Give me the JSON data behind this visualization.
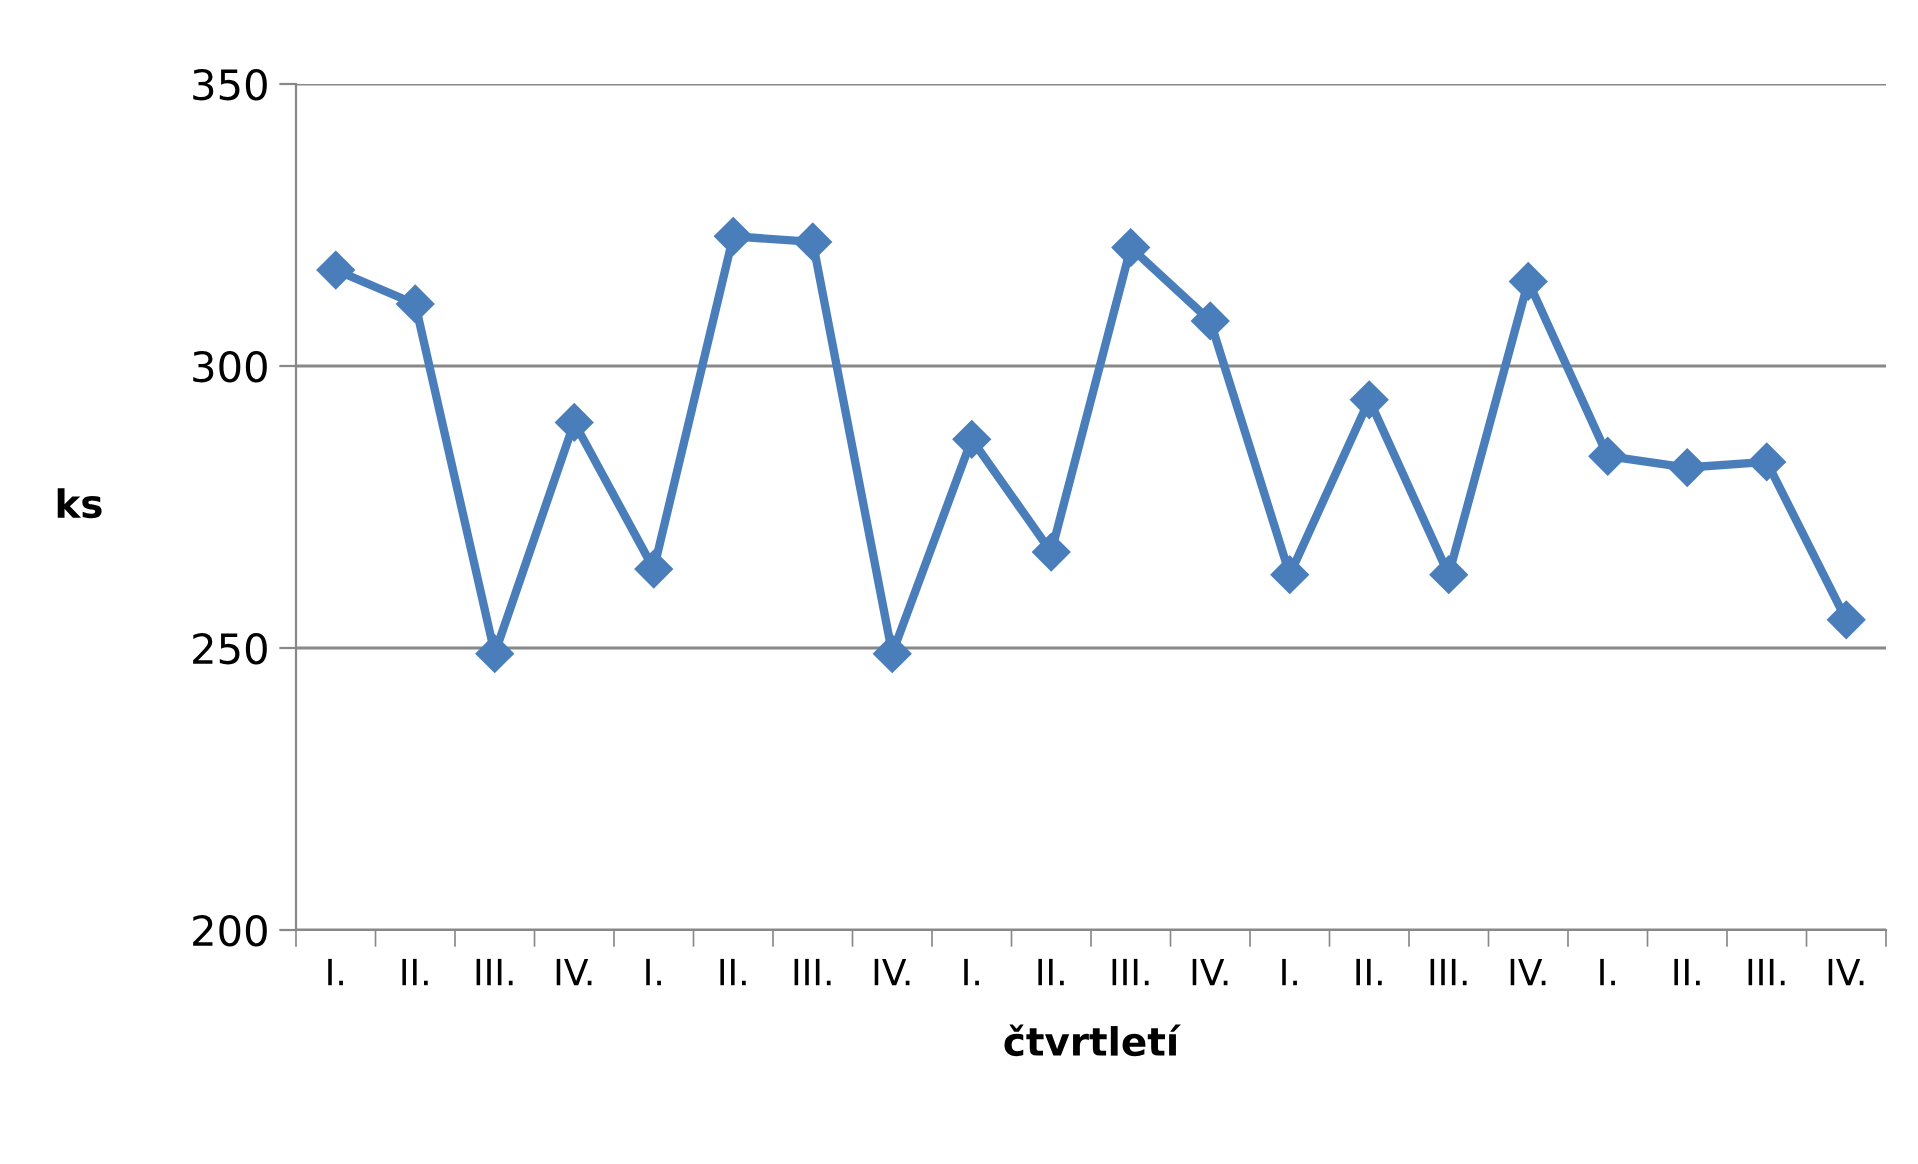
{
  "chart_data": {
    "type": "line",
    "xlabel": "čtvrtletí",
    "ylabel": "ks",
    "categories": [
      "I.",
      "II.",
      "III.",
      "IV.",
      "I.",
      "II.",
      "III.",
      "IV.",
      "I.",
      "II.",
      "III.",
      "IV.",
      "I.",
      "II.",
      "III.",
      "IV.",
      "I.",
      "II.",
      "III.",
      "IV."
    ],
    "series": [
      {
        "color": "#4a7ebb",
        "values": [
          317,
          311,
          249,
          290,
          264,
          323,
          322,
          249,
          287,
          267,
          321,
          308,
          263,
          294,
          263,
          315,
          284,
          282,
          283,
          255
        ]
      }
    ],
    "ylim": [
      200,
      350
    ],
    "yticks": [
      200,
      250,
      300,
      350
    ],
    "grid": "y",
    "marker": "diamond",
    "line_style": "solid",
    "legend": false
  }
}
